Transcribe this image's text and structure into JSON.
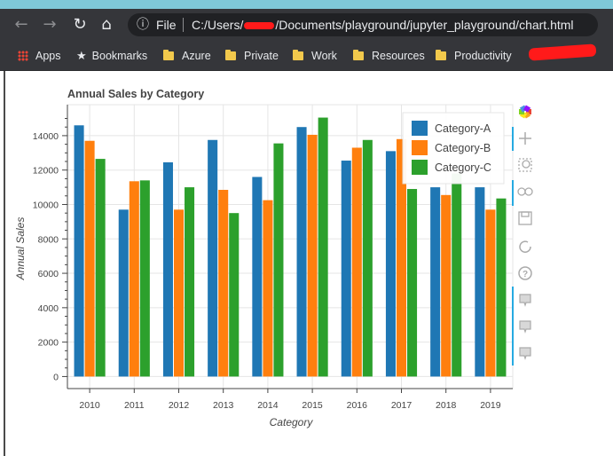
{
  "browser": {
    "back_glyph": "←",
    "forward_glyph": "→",
    "reload_glyph": "↻",
    "home_glyph": "⌂",
    "info_glyph": "ⓘ",
    "url_scheme_label": "File",
    "url_prefix": "C:/Users/",
    "url_suffix": "/Documents/playground/jupyter_playground/chart.html"
  },
  "bookmarks": {
    "items": [
      {
        "label": "Apps",
        "icon": "apps-grid-icon"
      },
      {
        "label": "Bookmarks",
        "icon": "star-icon"
      },
      {
        "label": "Azure",
        "icon": "folder-icon"
      },
      {
        "label": "Private",
        "icon": "folder-icon"
      },
      {
        "label": "Work",
        "icon": "folder-icon"
      },
      {
        "label": "Resources",
        "icon": "folder-icon"
      },
      {
        "label": "Productivity",
        "icon": "folder-icon"
      }
    ]
  },
  "toolbar_tools": [
    {
      "name": "bokeh-logo-icon"
    },
    {
      "name": "pan-icon"
    },
    {
      "name": "box-zoom-icon"
    },
    {
      "name": "wheel-zoom-icon"
    },
    {
      "name": "save-icon"
    },
    {
      "name": "reset-icon"
    },
    {
      "name": "help-icon"
    },
    {
      "name": "hover-icon"
    },
    {
      "name": "hover-icon"
    },
    {
      "name": "hover-icon"
    }
  ],
  "chart_data": {
    "type": "bar",
    "title": "Annual Sales by Category",
    "xlabel": "Category",
    "ylabel": "Annual Sales",
    "categories": [
      "2010",
      "2011",
      "2012",
      "2013",
      "2014",
      "2015",
      "2016",
      "2017",
      "2018",
      "2019"
    ],
    "series": [
      {
        "name": "Category-A",
        "color": "#1f77b4",
        "values": [
          14600,
          9700,
          12450,
          13750,
          11600,
          14500,
          12550,
          13100,
          11000,
          11000
        ]
      },
      {
        "name": "Category-B",
        "color": "#ff7f0e",
        "values": [
          13700,
          11350,
          9700,
          10850,
          10250,
          14050,
          13300,
          13800,
          10550,
          9700
        ]
      },
      {
        "name": "Category-C",
        "color": "#2ca02c",
        "values": [
          12650,
          11400,
          11000,
          9500,
          13550,
          15050,
          13750,
          10900,
          11800,
          10350
        ]
      }
    ],
    "ylim": [
      -700,
      15800
    ],
    "yticks": [
      0,
      2000,
      4000,
      6000,
      8000,
      10000,
      12000,
      14000
    ],
    "grid": true,
    "legend_position": "top-right"
  }
}
